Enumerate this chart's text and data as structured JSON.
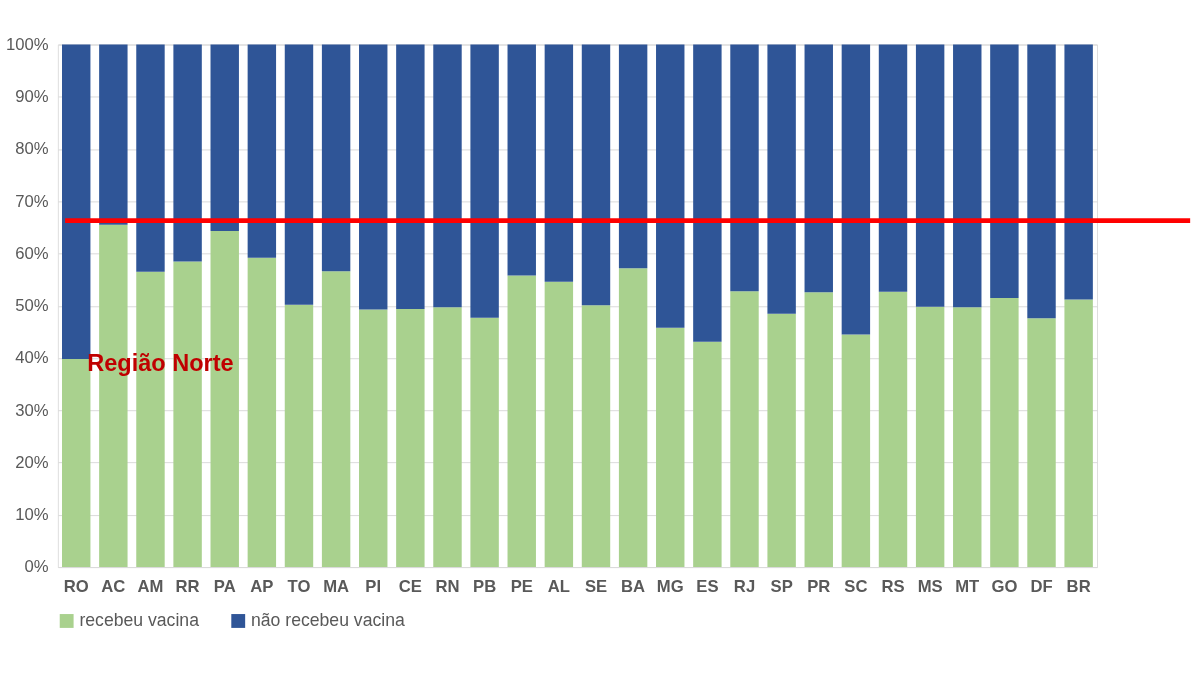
{
  "chart_data": {
    "type": "bar",
    "stacked": true,
    "categories": [
      "RO",
      "AC",
      "AM",
      "RR",
      "PA",
      "AP",
      "TO",
      "MA",
      "PI",
      "CE",
      "RN",
      "PB",
      "PE",
      "AL",
      "SE",
      "BA",
      "MG",
      "ES",
      "RJ",
      "SP",
      "PR",
      "SC",
      "RS",
      "MS",
      "MT",
      "GO",
      "DF",
      "BR"
    ],
    "series": [
      {
        "name": "recebeu vacina",
        "color": "#a9d18e",
        "values": [
          39.8,
          65.5,
          56.5,
          58.5,
          64.3,
          59.2,
          50.2,
          56.6,
          49.3,
          49.4,
          49.7,
          47.7,
          55.8,
          54.6,
          50.1,
          57.2,
          45.8,
          43.1,
          52.8,
          48.5,
          52.6,
          44.5,
          52.7,
          49.8,
          49.7,
          51.5,
          47.6,
          51.2
        ]
      },
      {
        "name": "não recebeu vacina",
        "color": "#2f5597",
        "values": [
          60.2,
          34.5,
          43.5,
          41.5,
          35.7,
          40.8,
          49.8,
          43.4,
          50.7,
          50.6,
          50.3,
          52.3,
          44.2,
          45.4,
          49.9,
          42.8,
          54.2,
          56.9,
          47.2,
          51.5,
          47.4,
          55.5,
          47.3,
          50.2,
          50.3,
          48.5,
          52.4,
          48.8
        ]
      }
    ],
    "ylim": [
      0,
      100
    ],
    "yticks": [
      {
        "value": 0,
        "label": "0%"
      },
      {
        "value": 10,
        "label": "10%"
      },
      {
        "value": 20,
        "label": "20%"
      },
      {
        "value": 30,
        "label": "30%"
      },
      {
        "value": 40,
        "label": "40%"
      },
      {
        "value": 50,
        "label": "50%"
      },
      {
        "value": 60,
        "label": "60%"
      },
      {
        "value": 70,
        "label": "70%"
      },
      {
        "value": 80,
        "label": "80%"
      },
      {
        "value": 90,
        "label": "90%"
      },
      {
        "value": 100,
        "label": "100%"
      }
    ],
    "grid": "y",
    "legend": "bottom",
    "ref_lines": [
      {
        "axis": "y",
        "value": 66.3,
        "color": "#ff0000"
      }
    ],
    "annotations": [
      "Região Norte"
    ]
  }
}
